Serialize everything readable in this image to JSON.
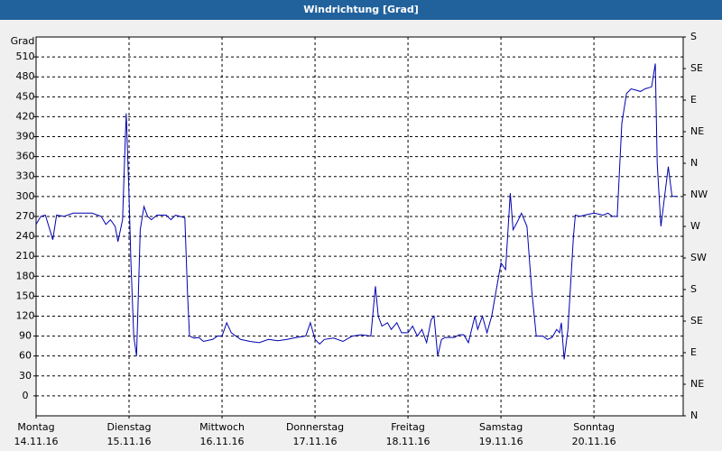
{
  "chart_data": {
    "type": "line",
    "title": "Windrichtung [Grad]",
    "y_label": "Grad",
    "xlim": [
      0,
      6.96
    ],
    "xticks": [
      {
        "value": 0,
        "label": "Montag",
        "sublabel": "14.11.16"
      },
      {
        "value": 1,
        "label": "Dienstag",
        "sublabel": "15.11.16"
      },
      {
        "value": 2,
        "label": "Mittwoch",
        "sublabel": "16.11.16"
      },
      {
        "value": 3,
        "label": "Donnerstag",
        "sublabel": "17.11.16"
      },
      {
        "value": 4,
        "label": "Freitag",
        "sublabel": "18.11.16"
      },
      {
        "value": 5,
        "label": "Samstag",
        "sublabel": "19.11.16"
      },
      {
        "value": 6,
        "label": "Sonntag",
        "sublabel": "20.11.16"
      }
    ],
    "ylim": [
      -30,
      540
    ],
    "yticks": [
      0,
      30,
      60,
      90,
      120,
      150,
      180,
      210,
      240,
      270,
      300,
      330,
      360,
      390,
      420,
      450,
      480,
      510
    ],
    "y2lim": [
      0,
      540
    ],
    "y2ticks": [
      {
        "value": 0,
        "label": "N"
      },
      {
        "value": 45,
        "label": "NE"
      },
      {
        "value": 90,
        "label": "E"
      },
      {
        "value": 135,
        "label": "SE"
      },
      {
        "value": 180,
        "label": "S"
      },
      {
        "value": 225,
        "label": "SW"
      },
      {
        "value": 270,
        "label": "W"
      },
      {
        "value": 315,
        "label": "NW"
      },
      {
        "value": 360,
        "label": "N"
      },
      {
        "value": 405,
        "label": "NE"
      },
      {
        "value": 450,
        "label": "E"
      },
      {
        "value": 495,
        "label": "SE"
      },
      {
        "value": 540,
        "label": "S"
      }
    ],
    "grid": true,
    "series": [
      {
        "color": "#0000b0",
        "x": [
          0,
          0.05,
          0.1,
          0.18,
          0.22,
          0.3,
          0.4,
          0.5,
          0.6,
          0.7,
          0.75,
          0.8,
          0.85,
          0.88,
          0.93,
          0.96,
          0.97,
          1.0,
          1.02,
          1.05,
          1.08,
          1.12,
          1.16,
          1.2,
          1.24,
          1.3,
          1.4,
          1.45,
          1.5,
          1.6,
          1.63,
          1.65,
          1.7,
          1.75,
          1.8,
          1.9,
          1.95,
          2.0,
          2.05,
          2.1,
          2.2,
          2.3,
          2.4,
          2.5,
          2.6,
          2.7,
          2.8,
          2.9,
          2.95,
          3.0,
          3.05,
          3.1,
          3.2,
          3.3,
          3.4,
          3.5,
          3.6,
          3.65,
          3.68,
          3.72,
          3.78,
          3.82,
          3.88,
          3.93,
          4.0,
          4.05,
          4.1,
          4.15,
          4.2,
          4.25,
          4.28,
          4.32,
          4.36,
          4.4,
          4.5,
          4.55,
          4.6,
          4.65,
          4.72,
          4.75,
          4.8,
          4.85,
          4.9,
          5.0,
          5.05,
          5.1,
          5.13,
          5.17,
          5.22,
          5.28,
          5.33,
          5.38,
          5.45,
          5.5,
          5.55,
          5.6,
          5.63,
          5.65,
          5.68,
          5.72,
          5.78,
          5.8,
          5.85,
          5.9,
          6.0,
          6.1,
          6.15,
          6.2,
          6.25,
          6.3,
          6.35,
          6.4,
          6.45,
          6.5,
          6.55,
          6.62,
          6.66,
          6.68,
          6.72,
          6.76,
          6.8,
          6.84,
          6.9
        ],
        "values": [
          258,
          270,
          272,
          235,
          272,
          270,
          275,
          275,
          275,
          270,
          258,
          265,
          255,
          232,
          265,
          390,
          425,
          300,
          200,
          90,
          60,
          250,
          285,
          270,
          265,
          272,
          272,
          265,
          272,
          268,
          150,
          90,
          87,
          88,
          82,
          85,
          90,
          90,
          110,
          95,
          85,
          82,
          80,
          85,
          83,
          85,
          88,
          90,
          110,
          85,
          78,
          85,
          87,
          82,
          90,
          92,
          90,
          165,
          120,
          105,
          110,
          100,
          110,
          95,
          95,
          105,
          90,
          100,
          80,
          115,
          120,
          60,
          85,
          88,
          88,
          92,
          92,
          80,
          120,
          100,
          120,
          95,
          120,
          200,
          190,
          305,
          250,
          260,
          275,
          255,
          160,
          90,
          90,
          85,
          88,
          100,
          95,
          110,
          55,
          100,
          240,
          272,
          270,
          272,
          275,
          272,
          275,
          270,
          270,
          410,
          455,
          462,
          460,
          458,
          462,
          465,
          500,
          350,
          255,
          300,
          345,
          300,
          300
        ]
      }
    ]
  }
}
